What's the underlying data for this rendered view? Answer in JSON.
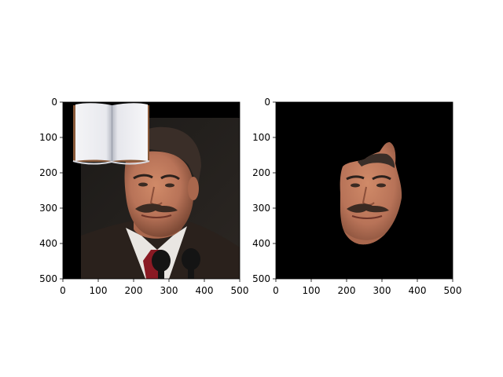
{
  "figure": {
    "panels": [
      {
        "id": "original",
        "content": "portrait photo of a man in dark suit and red tie at microphones, with an open book image overlaid in the top-left corner",
        "xlim": [
          0,
          500
        ],
        "ylim": [
          0,
          500
        ],
        "y_inverted": true,
        "xticks": [
          "0",
          "100",
          "200",
          "300",
          "400",
          "500"
        ],
        "yticks": [
          "0",
          "100",
          "200",
          "300",
          "400",
          "500"
        ]
      },
      {
        "id": "segmented",
        "content": "face region of the same man isolated on a black background",
        "xlim": [
          0,
          500
        ],
        "ylim": [
          0,
          500
        ],
        "y_inverted": true,
        "xticks": [
          "0",
          "100",
          "200",
          "300",
          "400",
          "500"
        ],
        "yticks": [
          "0",
          "100",
          "200",
          "300",
          "400",
          "500"
        ]
      }
    ]
  },
  "colors": {
    "background": "#ffffff",
    "mask": "#000000",
    "suit": "#2a211c",
    "skin": "#b87358",
    "tie": "#8a1a24",
    "book_cover": "#8a5a3a"
  }
}
